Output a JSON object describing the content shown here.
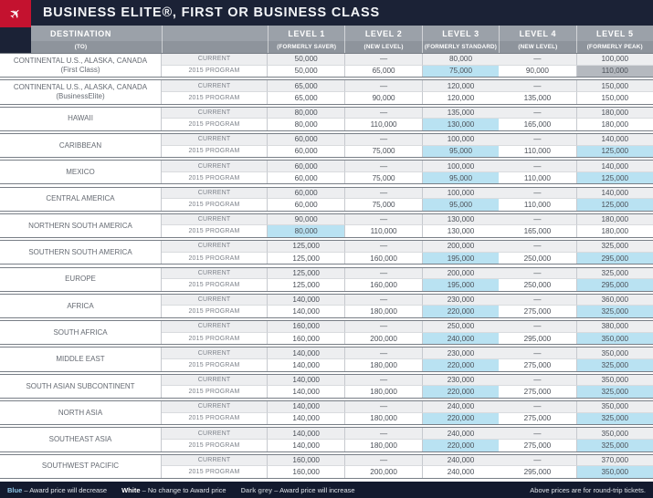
{
  "title": "BUSINESS ELITE®, FIRST OR BUSINESS CLASS",
  "colors": {
    "titlebar": "#1b2236",
    "logo_red": "#c4122f",
    "header_row1": "#9ba1a9",
    "header_row2": "#8e949c",
    "current_row_bg": "#edeef0",
    "highlight_blue": "#b9e2f2",
    "highlight_grey": "#b5b9bf",
    "footer_bg": "#131a2e",
    "legend_blue": "#8fc7e8",
    "legend_white": "#ffffff",
    "legend_grey": "#a7adb5"
  },
  "chart_data": {
    "type": "table",
    "title": "BUSINESS ELITE®, FIRST OR BUSINESS CLASS",
    "header": {
      "destination_label": "DESTINATION",
      "destination_sub": "(TO)",
      "levels": [
        {
          "label": "LEVEL 1",
          "sub": "(FORMERLY SAVER)"
        },
        {
          "label": "LEVEL 2",
          "sub": "(NEW LEVEL)"
        },
        {
          "label": "LEVEL 3",
          "sub": "(FORMERLY STANDARD)"
        },
        {
          "label": "LEVEL 4",
          "sub": "(NEW LEVEL)"
        },
        {
          "label": "LEVEL 5",
          "sub": "(FORMERLY PEAK)"
        }
      ]
    },
    "row_labels": {
      "current": "CURRENT",
      "program": "2015 PROGRAM"
    },
    "highlight_meaning": {
      "blue": "Award price will decrease",
      "white": "No change to Award price",
      "grey": "Award price will increase"
    },
    "groups": [
      {
        "destination": "CONTINENTAL U.S., ALASKA, CANADA",
        "destination_sub": "(First Class)",
        "current": [
          "50,000",
          "—",
          "80,000",
          "—",
          "100,000"
        ],
        "program": [
          "50,000",
          "65,000",
          "75,000",
          "90,000",
          "110,000"
        ],
        "program_highlight": [
          "",
          "",
          "blue",
          "",
          "grey"
        ]
      },
      {
        "destination": "CONTINENTAL U.S., ALASKA, CANADA",
        "destination_sub": "(BusinessElite)",
        "current": [
          "65,000",
          "—",
          "120,000",
          "—",
          "150,000"
        ],
        "program": [
          "65,000",
          "90,000",
          "120,000",
          "135,000",
          "150,000"
        ],
        "program_highlight": [
          "",
          "",
          "",
          "",
          ""
        ]
      },
      {
        "destination": "HAWAII",
        "destination_sub": "",
        "current": [
          "80,000",
          "—",
          "135,000",
          "—",
          "180,000"
        ],
        "program": [
          "80,000",
          "110,000",
          "130,000",
          "165,000",
          "180,000"
        ],
        "program_highlight": [
          "",
          "",
          "blue",
          "",
          ""
        ]
      },
      {
        "destination": "CARIBBEAN",
        "destination_sub": "",
        "current": [
          "60,000",
          "—",
          "100,000",
          "—",
          "140,000"
        ],
        "program": [
          "60,000",
          "75,000",
          "95,000",
          "110,000",
          "125,000"
        ],
        "program_highlight": [
          "",
          "",
          "blue",
          "",
          "blue"
        ]
      },
      {
        "destination": "MEXICO",
        "destination_sub": "",
        "current": [
          "60,000",
          "—",
          "100,000",
          "—",
          "140,000"
        ],
        "program": [
          "60,000",
          "75,000",
          "95,000",
          "110,000",
          "125,000"
        ],
        "program_highlight": [
          "",
          "",
          "blue",
          "",
          "blue"
        ]
      },
      {
        "destination": "CENTRAL AMERICA",
        "destination_sub": "",
        "current": [
          "60,000",
          "—",
          "100,000",
          "—",
          "140,000"
        ],
        "program": [
          "60,000",
          "75,000",
          "95,000",
          "110,000",
          "125,000"
        ],
        "program_highlight": [
          "",
          "",
          "blue",
          "",
          "blue"
        ]
      },
      {
        "destination": "NORTHERN SOUTH AMERICA",
        "destination_sub": "",
        "current": [
          "90,000",
          "—",
          "130,000",
          "—",
          "180,000"
        ],
        "program": [
          "80,000",
          "110,000",
          "130,000",
          "165,000",
          "180,000"
        ],
        "program_highlight": [
          "blue",
          "",
          "",
          "",
          ""
        ]
      },
      {
        "destination": "SOUTHERN SOUTH AMERICA",
        "destination_sub": "",
        "current": [
          "125,000",
          "—",
          "200,000",
          "—",
          "325,000"
        ],
        "program": [
          "125,000",
          "160,000",
          "195,000",
          "250,000",
          "295,000"
        ],
        "program_highlight": [
          "",
          "",
          "blue",
          "",
          "blue"
        ]
      },
      {
        "destination": "EUROPE",
        "destination_sub": "",
        "current": [
          "125,000",
          "—",
          "200,000",
          "—",
          "325,000"
        ],
        "program": [
          "125,000",
          "160,000",
          "195,000",
          "250,000",
          "295,000"
        ],
        "program_highlight": [
          "",
          "",
          "blue",
          "",
          "blue"
        ]
      },
      {
        "destination": "AFRICA",
        "destination_sub": "",
        "current": [
          "140,000",
          "—",
          "230,000",
          "—",
          "360,000"
        ],
        "program": [
          "140,000",
          "180,000",
          "220,000",
          "275,000",
          "325,000"
        ],
        "program_highlight": [
          "",
          "",
          "blue",
          "",
          "blue"
        ]
      },
      {
        "destination": "SOUTH AFRICA",
        "destination_sub": "",
        "current": [
          "160,000",
          "—",
          "250,000",
          "—",
          "380,000"
        ],
        "program": [
          "160,000",
          "200,000",
          "240,000",
          "295,000",
          "350,000"
        ],
        "program_highlight": [
          "",
          "",
          "blue",
          "",
          "blue"
        ]
      },
      {
        "destination": "MIDDLE EAST",
        "destination_sub": "",
        "current": [
          "140,000",
          "—",
          "230,000",
          "—",
          "350,000"
        ],
        "program": [
          "140,000",
          "180,000",
          "220,000",
          "275,000",
          "325,000"
        ],
        "program_highlight": [
          "",
          "",
          "blue",
          "",
          "blue"
        ]
      },
      {
        "destination": "SOUTH ASIAN SUBCONTINENT",
        "destination_sub": "",
        "current": [
          "140,000",
          "—",
          "230,000",
          "—",
          "350,000"
        ],
        "program": [
          "140,000",
          "180,000",
          "220,000",
          "275,000",
          "325,000"
        ],
        "program_highlight": [
          "",
          "",
          "blue",
          "",
          "blue"
        ]
      },
      {
        "destination": "NORTH ASIA",
        "destination_sub": "",
        "current": [
          "140,000",
          "—",
          "240,000",
          "—",
          "350,000"
        ],
        "program": [
          "140,000",
          "180,000",
          "220,000",
          "275,000",
          "325,000"
        ],
        "program_highlight": [
          "",
          "",
          "blue",
          "",
          "blue"
        ]
      },
      {
        "destination": "SOUTHEAST ASIA",
        "destination_sub": "",
        "current": [
          "140,000",
          "—",
          "240,000",
          "—",
          "350,000"
        ],
        "program": [
          "140,000",
          "180,000",
          "220,000",
          "275,000",
          "325,000"
        ],
        "program_highlight": [
          "",
          "",
          "blue",
          "",
          "blue"
        ]
      },
      {
        "destination": "SOUTHWEST PACIFIC",
        "destination_sub": "",
        "current": [
          "160,000",
          "—",
          "240,000",
          "—",
          "370,000"
        ],
        "program": [
          "160,000",
          "200,000",
          "240,000",
          "295,000",
          "350,000"
        ],
        "program_highlight": [
          "",
          "",
          "",
          "",
          "blue"
        ]
      }
    ],
    "legend": [
      {
        "key": "Blue",
        "text": "– Award price will decrease",
        "color_ref": "legend_blue"
      },
      {
        "key": "White",
        "text": "– No change to Award price",
        "color_ref": "legend_white"
      },
      {
        "key": "Dark grey",
        "text": "– Award price will increase",
        "color_ref": "legend_grey"
      }
    ],
    "footnote": "Above prices are for round-trip tickets."
  }
}
